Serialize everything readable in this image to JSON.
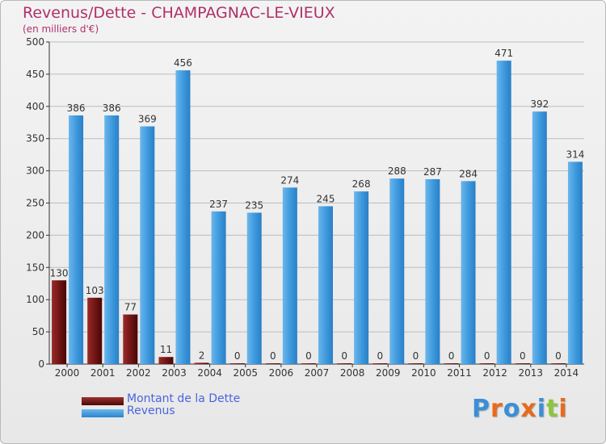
{
  "header": {
    "title": "Revenus/Dette - CHAMPAGNAC-LE-VIEUX",
    "subtitle": "(en milliers d'€)"
  },
  "logo": {
    "text": "Proxiti",
    "colors": [
      "#3a8fd6",
      "#e86a1c",
      "#3a8fd6",
      "#e86a1c",
      "#3a8fd6",
      "#8cc63f",
      "#e86a1c"
    ]
  },
  "chart_data": {
    "type": "bar",
    "categories": [
      "2000",
      "2001",
      "2002",
      "2003",
      "2004",
      "2005",
      "2006",
      "2007",
      "2008",
      "2009",
      "2010",
      "2011",
      "2012",
      "2013",
      "2014"
    ],
    "series": [
      {
        "name": "Montant de la Dette",
        "color": "#6e1414",
        "values": [
          130,
          103,
          77,
          11,
          2,
          0,
          0,
          0,
          0,
          0,
          0,
          0,
          0,
          0,
          0
        ]
      },
      {
        "name": "Revenus",
        "color": "#3a95dc",
        "values": [
          386,
          386,
          369,
          456,
          237,
          235,
          274,
          245,
          268,
          288,
          287,
          284,
          471,
          392,
          314
        ]
      }
    ],
    "ylim": [
      0,
      500
    ],
    "yticks": [
      0,
      50,
      100,
      150,
      200,
      250,
      300,
      350,
      400,
      450,
      500
    ],
    "grid": true,
    "legend": "bottom-left"
  }
}
